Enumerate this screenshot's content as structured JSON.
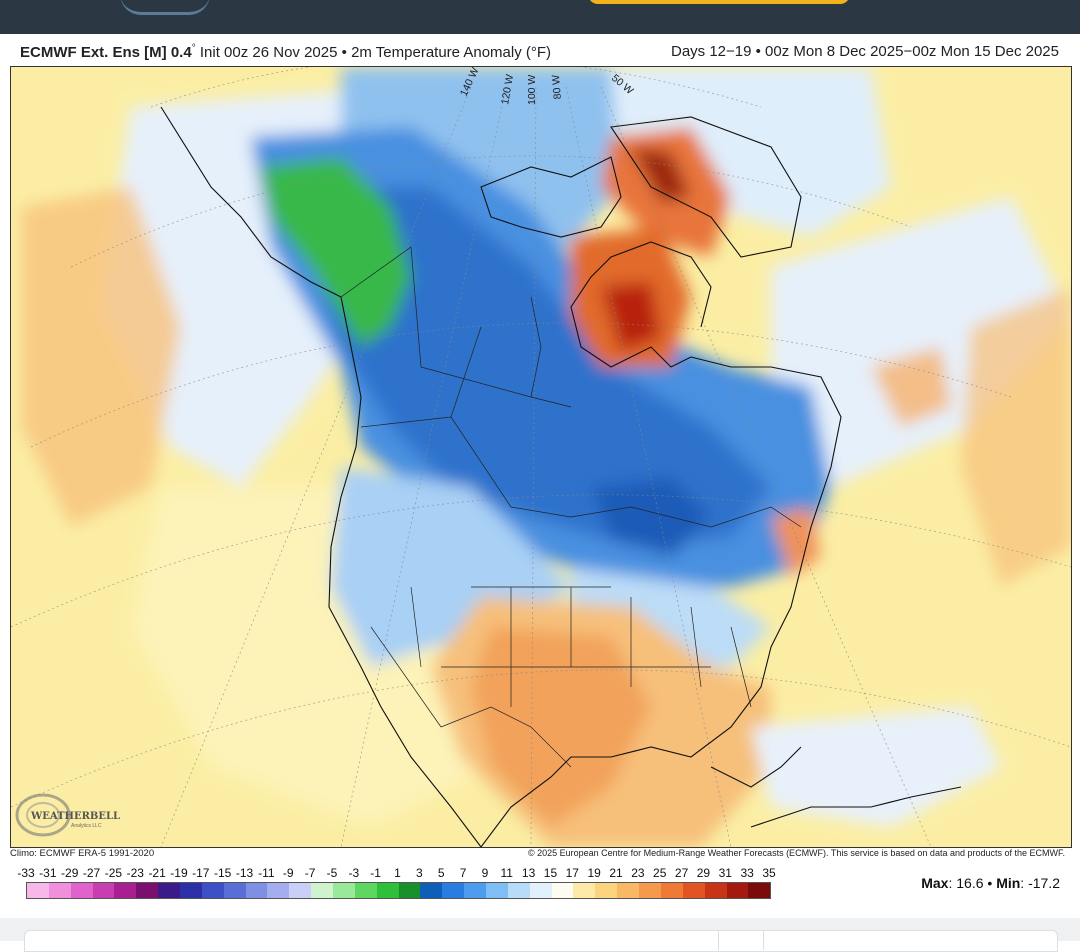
{
  "header": {
    "model": "ECMWF Ext. Ens [M] 0.4",
    "degree": "°",
    "init": "Init 00z 26 Nov 2025",
    "bullet": "•",
    "variable": "2m Temperature Anomaly (°F)",
    "period": "Days 12−19 • 00z Mon 8 Dec 2025−00z Mon 15 Dec 2025"
  },
  "map": {
    "longitude_labels": [
      "140 W",
      "120 W",
      "100 W",
      "80 W",
      "50 W"
    ],
    "logo_text": "WEATHERBELL",
    "logo_sub": "Analytics LLC"
  },
  "footer": {
    "climo": "Climo: ECMWF ERA-5 1991-2020",
    "copyright": "© 2025 European Centre for Medium-Range Weather Forecasts (ECMWF). This service is based on data and products of the ECMWF.",
    "max_label": "Max",
    "max_value": ": 16.6",
    "sep": " • ",
    "min_label": "Min",
    "min_value": ": -17.2"
  },
  "colorbar": {
    "ticks": [
      "-33",
      "-31",
      "-29",
      "-27",
      "-25",
      "-23",
      "-21",
      "-19",
      "-17",
      "-15",
      "-13",
      "-11",
      "-9",
      "-7",
      "-5",
      "-3",
      "-1",
      "1",
      "3",
      "5",
      "7",
      "9",
      "11",
      "13",
      "15",
      "17",
      "19",
      "21",
      "23",
      "25",
      "27",
      "29",
      "31",
      "33",
      "35"
    ],
    "colors": [
      "#f7b7e8",
      "#f08fdc",
      "#e062cc",
      "#c93db3",
      "#a81f92",
      "#7a0f6e",
      "#3b1a8a",
      "#2d2fa6",
      "#3d4fc4",
      "#5a6fd6",
      "#7f8fe4",
      "#a4aeee",
      "#c9cff6",
      "#cff3cf",
      "#9ae89a",
      "#5fd65f",
      "#2fbf3a",
      "#178f2a",
      "#0f5fb8",
      "#2a7de0",
      "#4d9ced",
      "#7fbdf5",
      "#b7dcfa",
      "#e2f0fc",
      "#fdfcf0",
      "#fde9a7",
      "#fbd27d",
      "#f9b864",
      "#f59a4c",
      "#ee7a36",
      "#e25424",
      "#c83418",
      "#a51a0f",
      "#7a0c0a"
    ]
  },
  "colors": {
    "topbar": "#2b3844",
    "accent": "#f3b21b"
  }
}
